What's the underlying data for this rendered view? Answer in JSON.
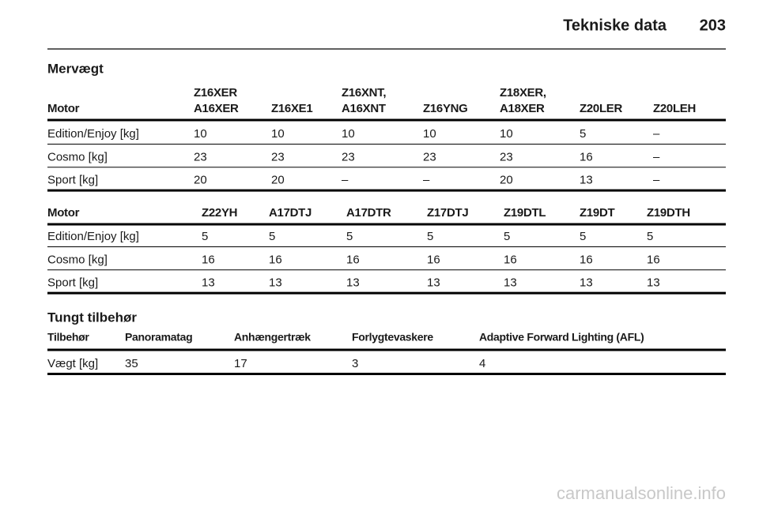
{
  "header": {
    "title": "Tekniske data",
    "page": "203"
  },
  "sections": [
    {
      "title": "Mervægt",
      "tables": [
        {
          "header": [
            [
              "Motor"
            ],
            [
              "Z16XER",
              "A16XER"
            ],
            [
              "Z16XE1"
            ],
            [
              "Z16XNT,",
              "A16XNT"
            ],
            [
              "Z16YNG"
            ],
            [
              "Z18XER,",
              "A18XER"
            ],
            [
              "Z20LER"
            ],
            [
              "Z20LEH"
            ]
          ],
          "rows": [
            [
              "Edition/Enjoy [kg]",
              "10",
              "10",
              "10",
              "10",
              "10",
              "5",
              "–"
            ],
            [
              "Cosmo [kg]",
              "23",
              "23",
              "23",
              "23",
              "23",
              "16",
              "–"
            ],
            [
              "Sport [kg]",
              "20",
              "20",
              "–",
              "–",
              "20",
              "13",
              "–"
            ]
          ]
        },
        {
          "header": [
            [
              "Motor"
            ],
            [
              "Z22YH"
            ],
            [
              "A17DTJ"
            ],
            [
              "A17DTR"
            ],
            [
              "Z17DTJ"
            ],
            [
              "Z19DTL"
            ],
            [
              "Z19DT"
            ],
            [
              "Z19DTH"
            ]
          ],
          "rows": [
            [
              "Edition/Enjoy [kg]",
              "5",
              "5",
              "5",
              "5",
              "5",
              "5",
              "5"
            ],
            [
              "Cosmo [kg]",
              "16",
              "16",
              "16",
              "16",
              "16",
              "16",
              "16"
            ],
            [
              "Sport [kg]",
              "13",
              "13",
              "13",
              "13",
              "13",
              "13",
              "13"
            ]
          ]
        }
      ]
    },
    {
      "title": "Tungt tilbehør",
      "tables": [
        {
          "header": [
            [
              "Tilbehør"
            ],
            [
              "Panoramatag"
            ],
            [
              "Anhængertræk"
            ],
            [
              "Forlygtevaskere"
            ],
            [
              "Adaptive Forward Lighting (AFL)"
            ]
          ],
          "rows": [
            [
              "Vægt [kg]",
              "35",
              "17",
              "3",
              "4"
            ]
          ]
        }
      ]
    }
  ],
  "watermark": "carmanualsonline.info"
}
